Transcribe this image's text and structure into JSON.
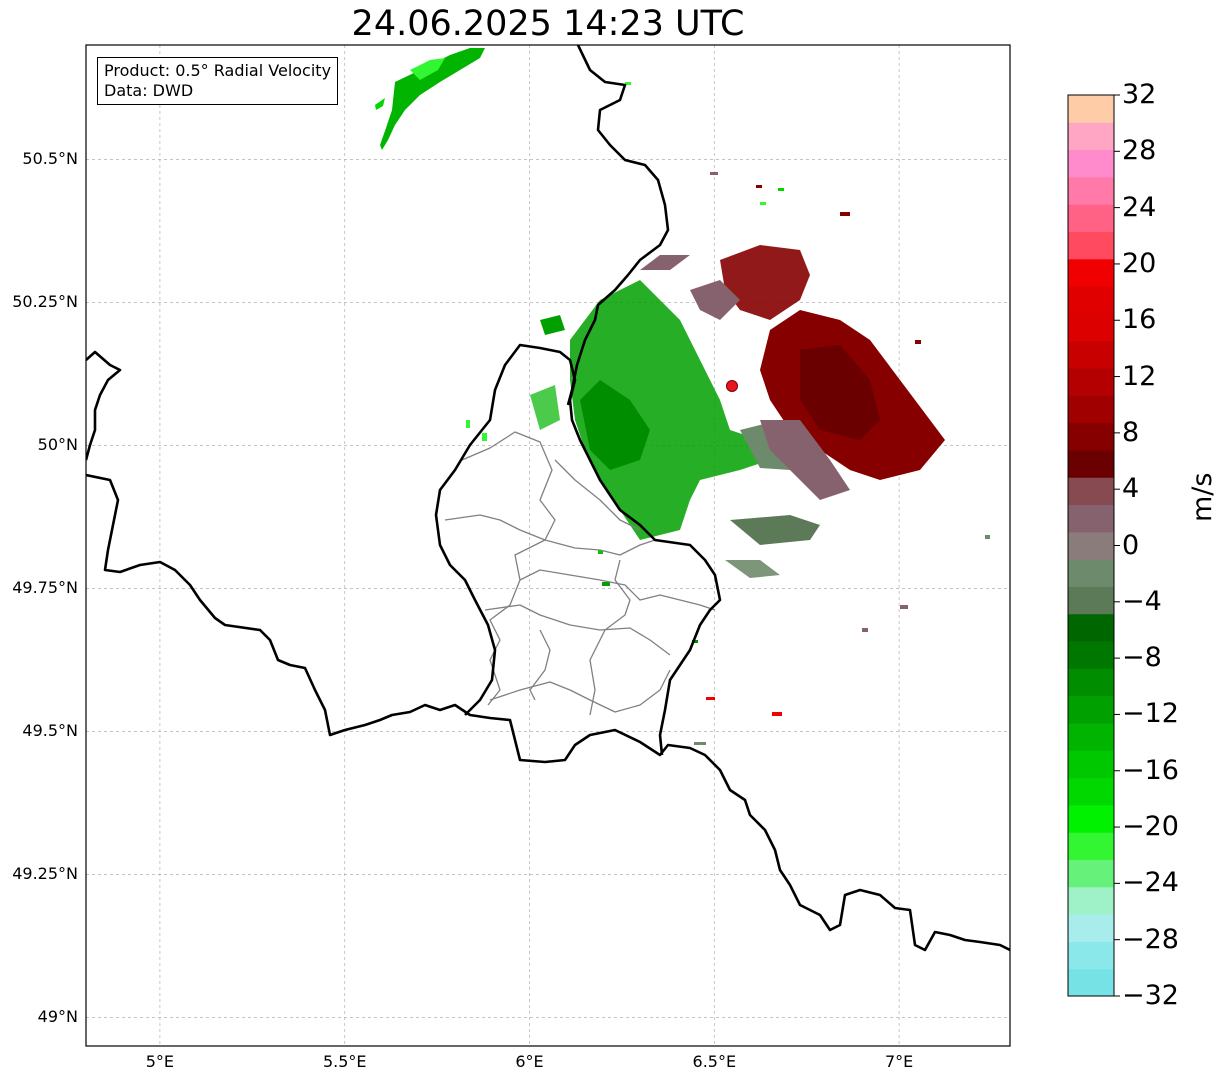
{
  "title": "24.06.2025 14:23 UTC",
  "info": {
    "line1": "Product: 0.5° Radial Velocity",
    "line2": "Data: DWD"
  },
  "map": {
    "lon_range": [
      4.8,
      7.3
    ],
    "lat_range": [
      48.95,
      50.7
    ],
    "lon_ticks": [
      {
        "value": 5.0,
        "label": "5°E"
      },
      {
        "value": 5.5,
        "label": "5.5°E"
      },
      {
        "value": 6.0,
        "label": "6°E"
      },
      {
        "value": 6.5,
        "label": "6.5°E"
      },
      {
        "value": 7.0,
        "label": "7°E"
      }
    ],
    "lat_ticks": [
      {
        "value": 50.5,
        "label": "50.5°N"
      },
      {
        "value": 50.25,
        "label": "50.25°N"
      },
      {
        "value": 50.0,
        "label": "50°N"
      },
      {
        "value": 49.75,
        "label": "49.75°N"
      },
      {
        "value": 49.5,
        "label": "49.5°N"
      },
      {
        "value": 49.25,
        "label": "49.25°N"
      },
      {
        "value": 49.0,
        "label": "49°N"
      }
    ],
    "radar_site": {
      "lon": 6.55,
      "lat": 50.11,
      "color": "#e8141e"
    },
    "border_color": "#000000",
    "admin_border_color": "#808080",
    "grid": true
  },
  "colorbar": {
    "unit": "m/s",
    "range": [
      -32,
      32
    ],
    "tick_labels": [
      {
        "value": 32,
        "label": "32"
      },
      {
        "value": 28,
        "label": "28"
      },
      {
        "value": 24,
        "label": "24"
      },
      {
        "value": 20,
        "label": "20"
      },
      {
        "value": 16,
        "label": "16"
      },
      {
        "value": 12,
        "label": "12"
      },
      {
        "value": 8,
        "label": "8"
      },
      {
        "value": 4,
        "label": "4"
      },
      {
        "value": 0,
        "label": "0"
      },
      {
        "value": -4,
        "label": "−4"
      },
      {
        "value": -8,
        "label": "−8"
      },
      {
        "value": -12,
        "label": "−12"
      },
      {
        "value": -16,
        "label": "−16"
      },
      {
        "value": -20,
        "label": "−20"
      },
      {
        "value": -24,
        "label": "−24"
      },
      {
        "value": -28,
        "label": "−28"
      },
      {
        "value": -32,
        "label": "−32"
      }
    ],
    "colors": [
      "#76e2e6",
      "#8be8ea",
      "#a8ecec",
      "#9ff2c8",
      "#66f27a",
      "#33f633",
      "#00f200",
      "#00d800",
      "#00c800",
      "#00b400",
      "#00a000",
      "#008e00",
      "#007800",
      "#006600",
      "#5c7a58",
      "#6e8a6c",
      "#8a7c7a",
      "#86626e",
      "#864a50",
      "#6a0000",
      "#860000",
      "#a00000",
      "#b40000",
      "#c80000",
      "#dc0000",
      "#e00000",
      "#f00000",
      "#ff4a60",
      "#ff6284",
      "#ff7aa8",
      "#ff8acc",
      "#ffa6c4",
      "#ffcca8"
    ]
  }
}
